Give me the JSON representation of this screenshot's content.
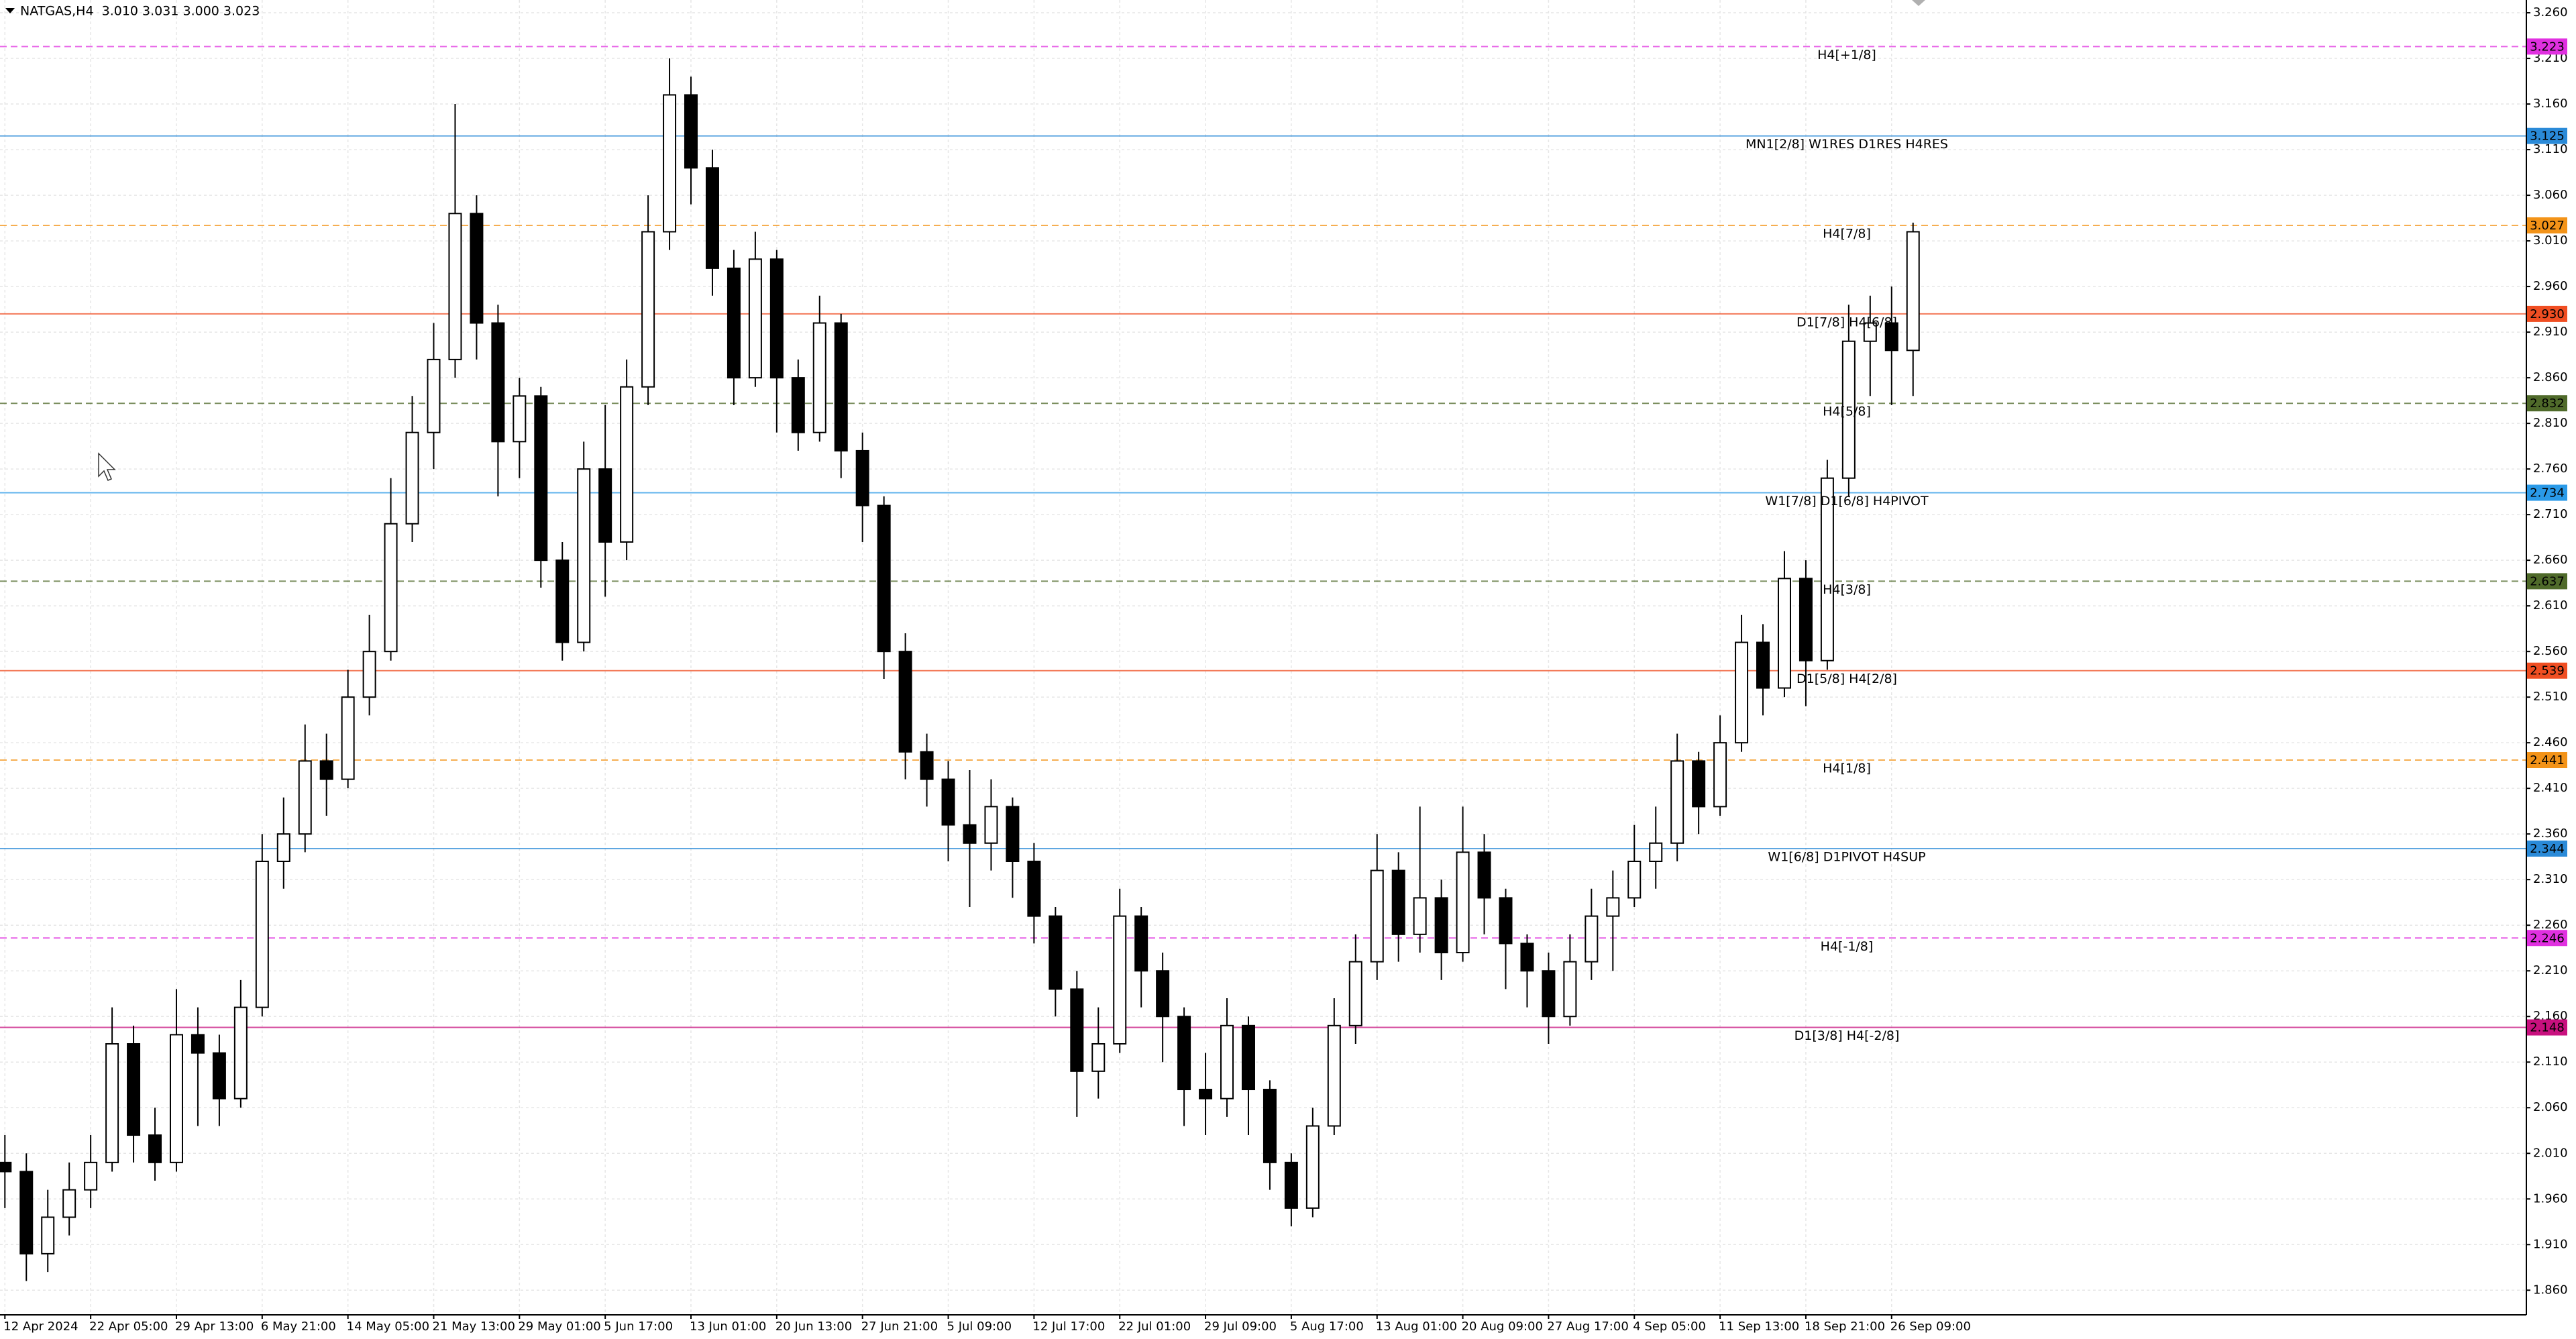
{
  "chart_data": {
    "type": "candlestick",
    "title": "NATGAS,H4  3.010 3.031 3.000 3.023",
    "grid": true,
    "candle_up_color": "#ffffff",
    "candle_down_color": "#000000",
    "categories": [
      "12 Apr 2024",
      null,
      null,
      null,
      "22 Apr 05:00",
      null,
      null,
      null,
      "29 Apr 13:00",
      null,
      null,
      null,
      "6 May 21:00",
      null,
      null,
      null,
      "14 May 05:00",
      null,
      null,
      null,
      "21 May 13:00",
      null,
      null,
      null,
      "29 May 01:00",
      null,
      null,
      null,
      "5 Jun 17:00",
      null,
      null,
      null,
      "13 Jun 01:00",
      null,
      null,
      null,
      "20 Jun 13:00",
      null,
      null,
      null,
      "27 Jun 21:00",
      null,
      null,
      null,
      "5 Jul 09:00",
      null,
      null,
      null,
      "12 Jul 17:00",
      null,
      null,
      null,
      "22 Jul 01:00",
      null,
      null,
      null,
      "29 Jul 09:00",
      null,
      null,
      null,
      "5 Aug 17:00",
      null,
      null,
      null,
      "13 Aug 01:00",
      null,
      null,
      null,
      "20 Aug 09:00",
      null,
      null,
      null,
      "27 Aug 17:00",
      null,
      null,
      null,
      "4 Sep 05:00",
      null,
      null,
      null,
      "11 Sep 13:00",
      null,
      null,
      null,
      "18 Sep 21:00",
      null,
      null,
      null,
      "26 Sep 09:00",
      null
    ],
    "open": [
      2.0,
      1.99,
      1.9,
      1.94,
      1.97,
      2.0,
      2.13,
      2.03,
      2.0,
      2.14,
      2.12,
      2.07,
      2.17,
      2.33,
      2.36,
      2.44,
      2.42,
      2.51,
      2.56,
      2.7,
      2.8,
      2.88,
      3.04,
      2.92,
      2.79,
      2.84,
      2.66,
      2.57,
      2.76,
      2.68,
      2.85,
      3.02,
      3.17,
      3.09,
      2.98,
      2.86,
      2.99,
      2.86,
      2.8,
      2.92,
      2.78,
      2.72,
      2.56,
      2.45,
      2.42,
      2.37,
      2.35,
      2.39,
      2.33,
      2.27,
      2.19,
      2.1,
      2.13,
      2.27,
      2.21,
      2.16,
      2.08,
      2.07,
      2.15,
      2.08,
      2.0,
      1.95,
      2.04,
      2.15,
      2.22,
      2.32,
      2.25,
      2.29,
      2.23,
      2.34,
      2.29,
      2.24,
      2.21,
      2.16,
      2.22,
      2.27,
      2.29,
      2.33,
      2.35,
      2.44,
      2.39,
      2.46,
      2.57,
      2.52,
      2.64,
      2.55,
      2.75,
      2.9,
      2.92,
      2.89
    ],
    "high": [
      2.03,
      2.01,
      1.97,
      2.0,
      2.03,
      2.17,
      2.15,
      2.06,
      2.19,
      2.17,
      2.14,
      2.2,
      2.36,
      2.4,
      2.48,
      2.47,
      2.54,
      2.6,
      2.75,
      2.84,
      2.92,
      3.16,
      3.06,
      2.94,
      2.86,
      2.85,
      2.68,
      2.79,
      2.83,
      2.88,
      3.06,
      3.21,
      3.19,
      3.11,
      3.0,
      3.02,
      3.0,
      2.88,
      2.95,
      2.93,
      2.8,
      2.73,
      2.58,
      2.47,
      2.44,
      2.43,
      2.42,
      2.4,
      2.35,
      2.28,
      2.21,
      2.17,
      2.3,
      2.28,
      2.23,
      2.17,
      2.12,
      2.18,
      2.16,
      2.09,
      2.01,
      2.06,
      2.18,
      2.25,
      2.36,
      2.34,
      2.39,
      2.31,
      2.39,
      2.36,
      2.3,
      2.25,
      2.23,
      2.25,
      2.3,
      2.32,
      2.37,
      2.39,
      2.47,
      2.45,
      2.49,
      2.6,
      2.59,
      2.67,
      2.66,
      2.77,
      2.94,
      2.95,
      2.96,
      3.03
    ],
    "low": [
      1.95,
      1.87,
      1.88,
      1.92,
      1.95,
      1.99,
      2.0,
      1.98,
      1.99,
      2.04,
      2.04,
      2.06,
      2.16,
      2.3,
      2.34,
      2.38,
      2.41,
      2.49,
      2.55,
      2.68,
      2.76,
      2.86,
      2.88,
      2.73,
      2.75,
      2.63,
      2.55,
      2.56,
      2.62,
      2.66,
      2.83,
      3.0,
      3.05,
      2.95,
      2.83,
      2.85,
      2.8,
      2.78,
      2.79,
      2.75,
      2.68,
      2.53,
      2.42,
      2.39,
      2.33,
      2.28,
      2.32,
      2.29,
      2.24,
      2.16,
      2.05,
      2.07,
      2.12,
      2.17,
      2.11,
      2.04,
      2.03,
      2.05,
      2.03,
      1.97,
      1.93,
      1.94,
      2.03,
      2.13,
      2.2,
      2.22,
      2.23,
      2.2,
      2.22,
      2.25,
      2.19,
      2.17,
      2.13,
      2.15,
      2.2,
      2.21,
      2.28,
      2.3,
      2.33,
      2.36,
      2.38,
      2.45,
      2.49,
      2.51,
      2.5,
      2.54,
      2.73,
      2.84,
      2.83,
      2.84
    ],
    "close": [
      1.99,
      1.9,
      1.94,
      1.97,
      2.0,
      2.13,
      2.03,
      2.0,
      2.14,
      2.12,
      2.07,
      2.17,
      2.33,
      2.36,
      2.44,
      2.42,
      2.51,
      2.56,
      2.7,
      2.8,
      2.88,
      3.04,
      2.92,
      2.79,
      2.84,
      2.66,
      2.57,
      2.76,
      2.68,
      2.85,
      3.02,
      3.17,
      3.09,
      2.98,
      2.86,
      2.99,
      2.86,
      2.8,
      2.92,
      2.78,
      2.72,
      2.56,
      2.45,
      2.42,
      2.37,
      2.35,
      2.39,
      2.33,
      2.27,
      2.19,
      2.1,
      2.13,
      2.27,
      2.21,
      2.16,
      2.08,
      2.07,
      2.15,
      2.08,
      2.0,
      1.95,
      2.04,
      2.15,
      2.22,
      2.32,
      2.25,
      2.29,
      2.23,
      2.34,
      2.29,
      2.24,
      2.21,
      2.16,
      2.22,
      2.27,
      2.29,
      2.33,
      2.35,
      2.44,
      2.39,
      2.46,
      2.57,
      2.52,
      2.64,
      2.55,
      2.75,
      2.9,
      2.92,
      2.89,
      3.02
    ],
    "ylim": [
      1.833,
      3.274
    ],
    "yticks": [
      {
        "value": 3.26,
        "label": "3.260"
      },
      {
        "value": 3.21,
        "label": "3.210"
      },
      {
        "value": 3.16,
        "label": "3.160"
      },
      {
        "value": 3.11,
        "label": "3.110"
      },
      {
        "value": 3.06,
        "label": "3.060"
      },
      {
        "value": 3.01,
        "label": "3.010"
      },
      {
        "value": 2.96,
        "label": "2.960"
      },
      {
        "value": 2.91,
        "label": "2.910"
      },
      {
        "value": 2.86,
        "label": "2.860"
      },
      {
        "value": 2.81,
        "label": "2.810"
      },
      {
        "value": 2.76,
        "label": "2.760"
      },
      {
        "value": 2.71,
        "label": "2.710"
      },
      {
        "value": 2.66,
        "label": "2.660"
      },
      {
        "value": 2.61,
        "label": "2.610"
      },
      {
        "value": 2.56,
        "label": "2.560"
      },
      {
        "value": 2.51,
        "label": "2.510"
      },
      {
        "value": 2.46,
        "label": "2.460"
      },
      {
        "value": 2.41,
        "label": "2.410"
      },
      {
        "value": 2.36,
        "label": "2.360"
      },
      {
        "value": 2.31,
        "label": "2.310"
      },
      {
        "value": 2.26,
        "label": "2.260"
      },
      {
        "value": 2.21,
        "label": "2.210"
      },
      {
        "value": 2.16,
        "label": "2.160"
      },
      {
        "value": 2.11,
        "label": "2.110"
      },
      {
        "value": 2.06,
        "label": "2.060"
      },
      {
        "value": 2.01,
        "label": "2.010"
      },
      {
        "value": 1.96,
        "label": "1.960"
      },
      {
        "value": 1.91,
        "label": "1.910"
      },
      {
        "value": 1.86,
        "label": "1.860"
      }
    ],
    "levels": [
      {
        "name": "H4[+1/8]",
        "price": 3.223,
        "color": "#e030e0",
        "style": "dashed"
      },
      {
        "name": "MN1[2/8] W1RES D1RES H4RES",
        "price": 3.125,
        "color": "#2a8ad8",
        "style": "solid"
      },
      {
        "name": "H4[7/8]",
        "price": 3.027,
        "color": "#f39318",
        "style": "dashed"
      },
      {
        "name": "D1[7/8] H4[6/8]",
        "price": {
          "value": 2.93,
          "label": "2.930"
        },
        "color": "#f04e22",
        "style": "solid"
      },
      {
        "name": "H4[5/8]",
        "price": 2.832,
        "color": "#4f6a2a",
        "style": "dashed"
      },
      {
        "name": "W1[7/8] D1[6/8] H4PIVOT",
        "price": 2.734,
        "color": "#2a9ae8",
        "style": "solid"
      },
      {
        "name": "H4[3/8]",
        "price": 2.637,
        "color": "#4f6a2a",
        "style": "dashed"
      },
      {
        "name": "D1[5/8] H4[2/8]",
        "price": 2.539,
        "color": "#f04e22",
        "style": "solid"
      },
      {
        "name": "H4[1/8]",
        "price": 2.441,
        "color": "#f39318",
        "style": "dashed"
      },
      {
        "name": "W1[6/8] D1PIVOT H4SUP",
        "price": 2.344,
        "color": "#2a8ad8",
        "style": "solid"
      },
      {
        "name": "H4[-1/8]",
        "price": 2.246,
        "color": "#e030e0",
        "style": "dashed"
      },
      {
        "name": "D1[3/8] H4[-2/8]",
        "price": 2.148,
        "color": "#c8107e",
        "style": "solid"
      }
    ]
  }
}
